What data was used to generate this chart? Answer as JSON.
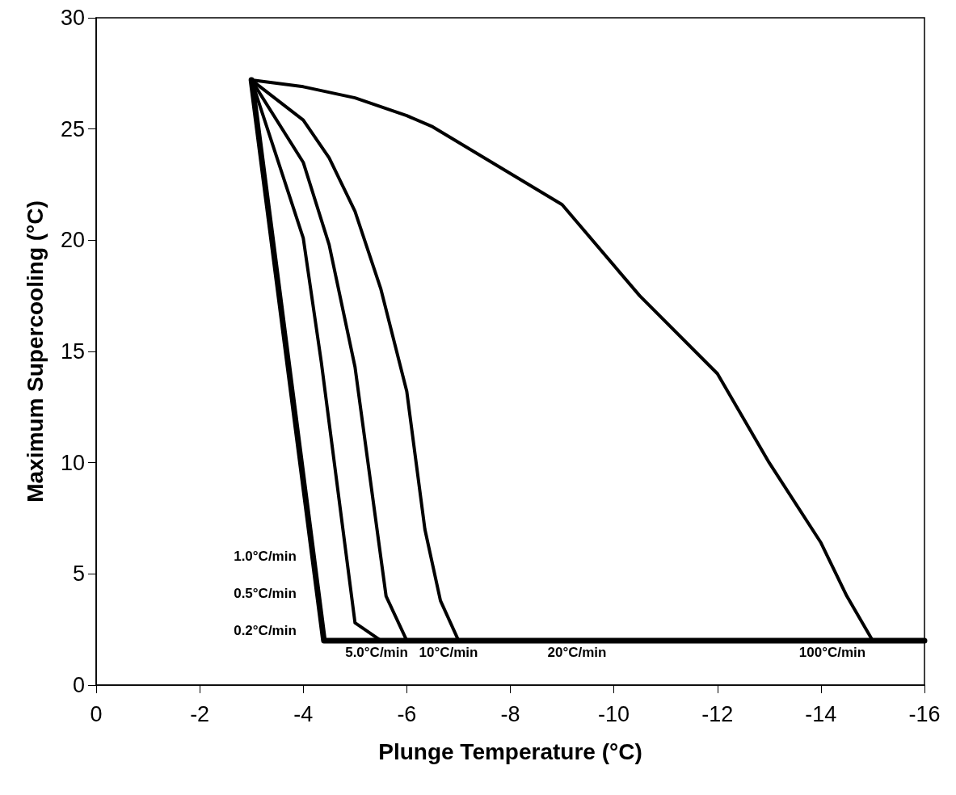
{
  "chart_data": {
    "type": "line",
    "xlabel": "Plunge Temperature (°C)",
    "ylabel": "Maximum Supercooling (°C)",
    "xlim": [
      0,
      -16
    ],
    "xticks": [
      0,
      -2,
      -4,
      -6,
      -8,
      -10,
      -12,
      -14,
      -16
    ],
    "ylim": [
      0,
      30
    ],
    "yticks": [
      0,
      5,
      10,
      15,
      20,
      25,
      30
    ],
    "grid": false,
    "marker": "none",
    "line_style": "solid",
    "series": [
      {
        "color": "#000000",
        "x": [
          -3,
          -4.4,
          -16
        ],
        "values": [
          27.2,
          2,
          2
        ]
      },
      {
        "color": "#000000",
        "x": [
          -3,
          -4,
          -4.35,
          -5,
          -5.5
        ],
        "values": [
          27.2,
          20.1,
          14.5,
          2.8,
          2
        ]
      },
      {
        "color": "#000000",
        "x": [
          -3,
          -4,
          -4.5,
          -5,
          -5.6,
          -6
        ],
        "values": [
          27.2,
          23.5,
          19.8,
          14.3,
          4,
          2
        ]
      },
      {
        "color": "#000000",
        "x": [
          -3,
          -4,
          -4.5,
          -5,
          -5.5,
          -6,
          -6.35,
          -6.65,
          -7
        ],
        "values": [
          27.2,
          25.4,
          23.7,
          21.3,
          17.8,
          13.2,
          7,
          3.8,
          2
        ]
      },
      {
        "color": "#000000",
        "x": [
          -3,
          -4,
          -5,
          -6,
          -6.5,
          -7,
          -8,
          -9,
          -10.5,
          -12,
          -13,
          -14,
          -14.5,
          -15,
          -16
        ],
        "values": [
          27.2,
          26.9,
          26.4,
          25.6,
          25.1,
          24.4,
          23,
          21.6,
          17.5,
          14,
          10,
          6.4,
          4,
          2,
          2
        ]
      }
    ],
    "annotations": [
      "1.0°C/min",
      "0.5°C/min",
      "0.2°C/min",
      "5.0°C/min",
      "10°C/min",
      "20°C/min",
      "100°C/min"
    ]
  }
}
